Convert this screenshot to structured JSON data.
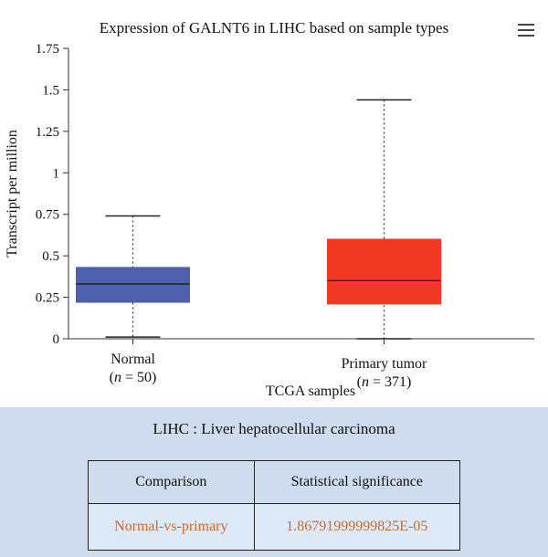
{
  "chart_data": {
    "type": "box",
    "title": "Expression of GALNT6 in LIHC based on sample types",
    "xlabel": "TCGA samples",
    "ylabel": "Transcript per million",
    "ylim": [
      0,
      1.75
    ],
    "yticks": [
      0,
      0.25,
      0.5,
      0.75,
      1,
      1.25,
      1.5,
      1.75
    ],
    "ytick_labels": [
      "0",
      "0.25",
      "0.5",
      "0.75",
      "1",
      "1.25",
      "1.5",
      "1.75"
    ],
    "grid": false,
    "boxes": [
      {
        "label": "Normal",
        "n_label": "(n = 50)",
        "n_prefix": "(",
        "n_var": "n",
        "n_rest": " = 50)",
        "color": "#4e5fae",
        "min": 0.01,
        "q1": 0.22,
        "median": 0.33,
        "q3": 0.43,
        "max": 0.74
      },
      {
        "label": "Primary tumor",
        "n_label": "(n = 371)",
        "n_prefix": "(",
        "n_var": "n",
        "n_rest": " = 371)",
        "color": "#f03a26",
        "min": 0.0,
        "q1": 0.21,
        "median": 0.35,
        "q3": 0.6,
        "max": 1.44
      }
    ]
  },
  "menu_icon": "hamburger-menu-icon",
  "panel": {
    "subtitle": "LIHC : Liver hepatocellular carcinoma",
    "table": {
      "headers": [
        "Comparison",
        "Statistical significance"
      ],
      "rows": [
        [
          "Normal-vs-primary",
          "1.86791999999825E-05"
        ]
      ]
    }
  },
  "colors": {
    "panel_bg": "#cfdcee",
    "row_bg": "#dde9f6",
    "row_text": "#c96a2a"
  }
}
